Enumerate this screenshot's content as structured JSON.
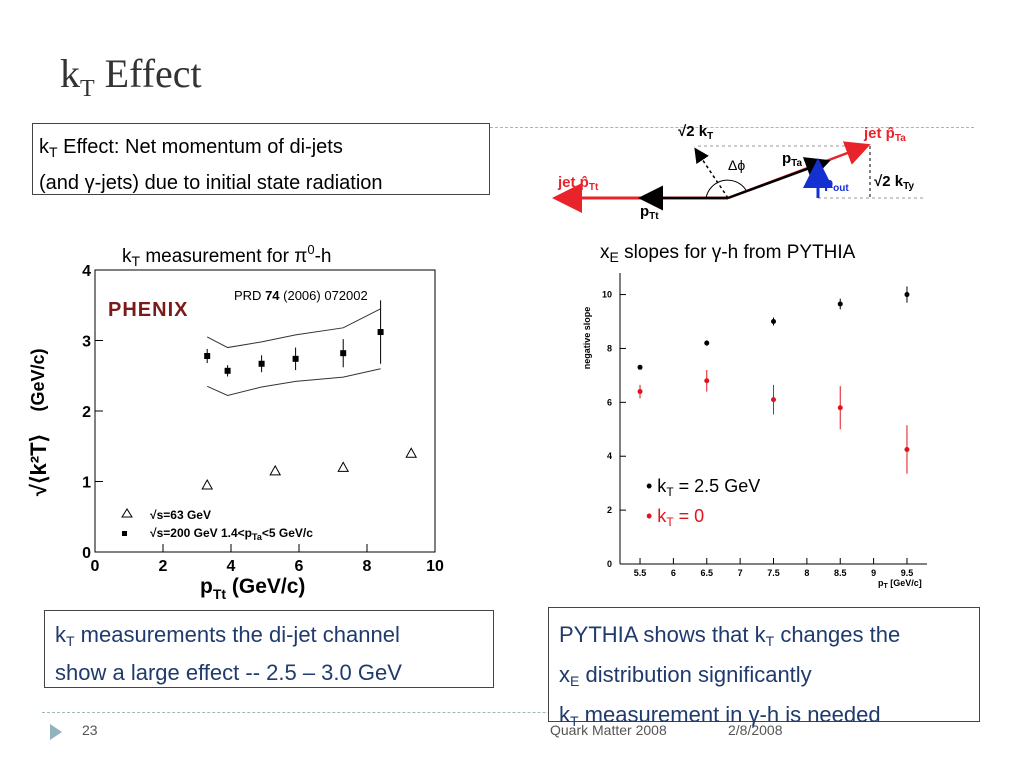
{
  "slide": {
    "title_main": "k",
    "title_sub": "T",
    "title_rest": " Effect",
    "top_box": {
      "k": "k",
      "k_sub": "T",
      "line1_rest": " Effect:  Net momentum of di-jets",
      "line2": "(and γ-jets) due to initial state radiation"
    },
    "left_caption": {
      "k": "k",
      "k_sub": "T",
      "rest_a": " measurement for π",
      "sup": "0",
      "rest_b": "-h"
    },
    "right_caption": {
      "x": "x",
      "x_sub": "E",
      "rest": " slopes for γ-h from PYTHIA"
    },
    "bottom_left": {
      "k": "k",
      "k_sub": "T",
      "line1_rest": " measurements the di-jet channel",
      "line2": "show a large effect --  2.5 – 3.0 GeV"
    },
    "bottom_right": {
      "line1_a": "PYTHIA shows that k",
      "line1_sub": "T",
      "line1_b": " changes the",
      "line2_a": "x",
      "line2_sub": "E",
      "line2_b": " distribution significantly",
      "line3_a": "k",
      "line3_sub": "T",
      "line3_b": " measurement in γ-h is needed"
    },
    "footer": {
      "page": "23",
      "conference": "Quark Matter 2008",
      "date": "2/8/2008"
    }
  },
  "diagram": {
    "jet_pt_a": "jet p̂",
    "jet_pt_a_sub": "Ta",
    "jet_pt_t": "jet p̂",
    "jet_pt_t_sub": "Tt",
    "sqrt2kt": "√2 k",
    "sqrt2kt_sub": "T",
    "sqrt2kty": "√2 k",
    "sqrt2kty_sub": "Ty",
    "dphi": "Δϕ",
    "pta": "p",
    "pta_sub": "Ta",
    "ptt": "p",
    "ptt_sub": "Tt",
    "pout": "p",
    "pout_sub": "out",
    "colors": {
      "jet": "#e8242a",
      "pout": "#1530d0",
      "black": "#000000"
    }
  },
  "chart_data": [
    {
      "type": "scatter",
      "title": "",
      "xlabel": "p_Tt (GeV/c)",
      "ylabel": "√⟨k_T²⟩ (GeV/c)",
      "xlim": [
        0,
        10
      ],
      "ylim": [
        0,
        4
      ],
      "x_ticks": [
        "0",
        "2",
        "4",
        "6",
        "8",
        "10"
      ],
      "y_ticks": [
        "0",
        "1",
        "2",
        "3",
        "4"
      ],
      "annotation": {
        "prd": "PRD ",
        "vol": "74",
        "rest": " (2006) 072002"
      },
      "logo": "PHENIX",
      "series": [
        {
          "name": "√s=63 GeV",
          "marker": "open-triangle",
          "points": [
            [
              3.3,
              0.95
            ],
            [
              5.3,
              1.15
            ],
            [
              7.3,
              1.2
            ],
            [
              9.3,
              1.4
            ]
          ]
        },
        {
          "name": "√s=200 GeV 1.4<p_Ta<5 GeV/c",
          "marker": "filled-square",
          "points": [
            [
              3.3,
              2.78,
              0.1
            ],
            [
              3.9,
              2.57,
              0.08
            ],
            [
              4.9,
              2.67,
              0.12
            ],
            [
              5.9,
              2.74,
              0.16
            ],
            [
              7.3,
              2.82,
              0.2
            ],
            [
              8.4,
              3.12,
              0.45
            ]
          ]
        }
      ],
      "band_upper": [
        [
          3.3,
          3.05
        ],
        [
          3.9,
          2.9
        ],
        [
          4.9,
          2.98
        ],
        [
          5.9,
          3.08
        ],
        [
          7.3,
          3.18
        ],
        [
          8.4,
          3.45
        ]
      ],
      "band_lower": [
        [
          3.3,
          2.35
        ],
        [
          3.9,
          2.22
        ],
        [
          4.9,
          2.34
        ],
        [
          5.9,
          2.42
        ],
        [
          7.3,
          2.48
        ],
        [
          8.4,
          2.6
        ]
      ],
      "legend": [
        {
          "label": "√s=63 GeV"
        },
        {
          "label": "√s=200 GeV 1.4<p",
          "sub": "Ta",
          "rest": "<5 GeV/c"
        }
      ]
    },
    {
      "type": "scatter",
      "title": "",
      "xlabel": "p_T [GeV/c]",
      "ylabel": "negative slope",
      "xlim": [
        5.2,
        9.8
      ],
      "ylim": [
        0,
        10.8
      ],
      "x_ticks": [
        "5.5",
        "6",
        "6.5",
        "7",
        "7.5",
        "8",
        "8.5",
        "9",
        "9.5"
      ],
      "y_ticks": [
        "0",
        "2",
        "4",
        "6",
        "8",
        "10"
      ],
      "series": [
        {
          "name": "k_T = 2.5 GeV",
          "color": "#000000",
          "points": [
            [
              5.5,
              7.3,
              0.05
            ],
            [
              6.5,
              8.2,
              0.1
            ],
            [
              7.5,
              9.0,
              0.15
            ],
            [
              8.5,
              9.65,
              0.2
            ],
            [
              9.5,
              10.0,
              0.3
            ]
          ]
        },
        {
          "name": "k_T = 0",
          "color": "#e0141c",
          "points": [
            [
              5.5,
              6.4,
              0.25
            ],
            [
              6.5,
              6.8,
              0.4
            ],
            [
              7.5,
              6.1,
              0.55
            ],
            [
              8.5,
              5.8,
              0.8
            ],
            [
              9.5,
              4.25,
              0.9
            ]
          ]
        }
      ],
      "legend": [
        {
          "bullet": "• k",
          "sub": "T",
          "rest": " = 2.5 GeV",
          "color": "#000000"
        },
        {
          "bullet": "• k",
          "sub": "T",
          "rest": " = 0",
          "color": "#e0141c"
        }
      ]
    }
  ]
}
